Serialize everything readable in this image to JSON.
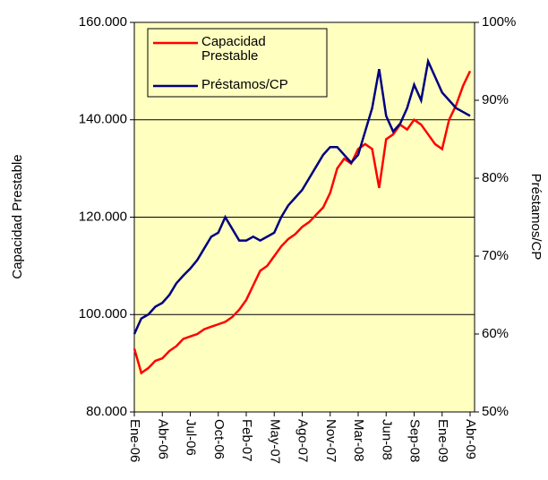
{
  "chart_data": {
    "type": "line",
    "y_label": "Capacidad Prestable",
    "y2_label": "Préstamos/CP",
    "categories": [
      "Ene-06",
      null,
      null,
      null,
      "Abr-06",
      null,
      null,
      null,
      "Jul-06",
      null,
      null,
      null,
      "Oct-06",
      null,
      null,
      null,
      "Feb-07",
      null,
      null,
      null,
      "May-07",
      null,
      null,
      null,
      "Ago-07",
      null,
      null,
      null,
      "Nov-07",
      null,
      null,
      null,
      "Mar-08",
      null,
      null,
      null,
      "Jun-08",
      null,
      null,
      null,
      "Sep-08",
      null,
      null,
      null,
      "Ene-09",
      null,
      null,
      null,
      "Abr-09"
    ],
    "series": [
      {
        "name": "Capacidad Prestable",
        "color": "#ff0000",
        "values": [
          93000,
          88000,
          89000,
          90500,
          91000,
          92500,
          93500,
          95000,
          95500,
          96000,
          97000,
          97500,
          98000,
          98500,
          99500,
          101000,
          103000,
          106000,
          109000,
          110000,
          112000,
          114000,
          115500,
          116500,
          118000,
          119000,
          120500,
          122000,
          125000,
          130000,
          132000,
          131000,
          134000,
          135000,
          134000,
          126000,
          136000,
          137000,
          139000,
          138000,
          140000,
          139000,
          137000,
          135000,
          134000,
          140000,
          143000,
          147000,
          150000
        ]
      },
      {
        "name": "Préstamos/CP",
        "color": "#000080",
        "axis": "y2",
        "values": [
          60,
          62,
          62.5,
          63.5,
          64,
          65,
          66.5,
          67.5,
          68.4,
          69.5,
          71,
          72.5,
          73,
          75,
          73.5,
          72,
          72,
          72.5,
          72,
          72.5,
          73,
          75,
          76.5,
          77.5,
          78.5,
          80,
          81.5,
          83,
          84,
          84,
          83,
          82,
          83,
          86,
          89,
          94,
          88,
          86,
          87,
          89,
          92,
          90,
          95,
          93,
          91,
          90,
          89,
          88.5,
          88
        ]
      }
    ],
    "ylim": [
      80000,
      160000
    ],
    "yticks": [
      {
        "value": 80000,
        "label": "80.000"
      },
      {
        "value": 100000,
        "label": "100.000"
      },
      {
        "value": 120000,
        "label": "120.000"
      },
      {
        "value": 140000,
        "label": "140.000"
      },
      {
        "value": 160000,
        "label": "160.000"
      }
    ],
    "y2lim": [
      50,
      100
    ],
    "y2ticks": [
      {
        "value": 50,
        "label": "50%"
      },
      {
        "value": 60,
        "label": "60%"
      },
      {
        "value": 70,
        "label": "70%"
      },
      {
        "value": 80,
        "label": "80%"
      },
      {
        "value": 90,
        "label": "90%"
      },
      {
        "value": 100,
        "label": "100%"
      }
    ],
    "grid": true,
    "legend": "upper left",
    "background": "#ffffc0"
  }
}
